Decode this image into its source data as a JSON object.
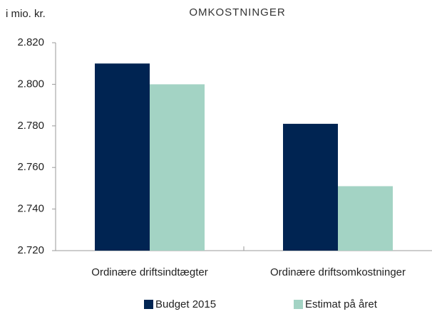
{
  "chart_data": {
    "type": "bar",
    "title": "OMKOSTNINGER",
    "y_label": "i mio. kr.",
    "categories": [
      "Ordinære driftsindtægter",
      "Ordinære driftsomkostninger"
    ],
    "series": [
      {
        "name": "Budget 2015",
        "color": "#002452",
        "values": [
          2810,
          2781
        ]
      },
      {
        "name": "Estimat på året",
        "color": "#a3d3c4",
        "values": [
          2800,
          2751
        ]
      }
    ],
    "ylim": [
      2720,
      2820
    ],
    "yticks": [
      {
        "value": 2720,
        "label": "2.720"
      },
      {
        "value": 2740,
        "label": "2.740"
      },
      {
        "value": 2760,
        "label": "2.760"
      },
      {
        "value": 2780,
        "label": "2.780"
      },
      {
        "value": 2800,
        "label": "2.800"
      },
      {
        "value": 2820,
        "label": "2.820"
      }
    ],
    "grid": false
  }
}
